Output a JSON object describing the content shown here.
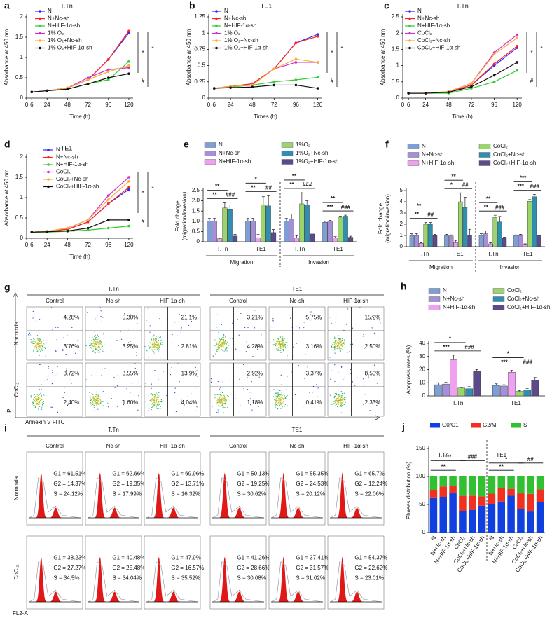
{
  "chart_data": [
    {
      "panel": "a",
      "type": "line",
      "title": "T.Tn",
      "x_label": "Time (h)",
      "y_label": "Absorbance at 450 nm",
      "x": [
        6,
        24,
        48,
        72,
        96,
        120
      ],
      "xlim": [
        0,
        125
      ],
      "xticks": [
        0,
        6,
        24,
        48,
        72,
        96,
        120
      ],
      "ylim": [
        0,
        2
      ],
      "yticks": [
        0,
        0.5,
        1,
        1.5,
        2
      ],
      "series": [
        {
          "name": "N",
          "color": "#2b2bff",
          "values": [
            0.15,
            0.18,
            0.25,
            0.45,
            0.95,
            1.6
          ]
        },
        {
          "name": "N+Nc-sh",
          "color": "#ff2020",
          "values": [
            0.15,
            0.18,
            0.25,
            0.45,
            0.95,
            1.65
          ]
        },
        {
          "name": "N+HIF-1α-sh",
          "color": "#33cc33",
          "values": [
            0.15,
            0.18,
            0.22,
            0.35,
            0.45,
            0.9
          ]
        },
        {
          "name": "1% O₂",
          "color": "#cc33cc",
          "values": [
            0.15,
            0.18,
            0.25,
            0.5,
            0.7,
            0.75
          ]
        },
        {
          "name": "1% O₂+Nc-sh",
          "color": "#ffaa33",
          "values": [
            0.15,
            0.18,
            0.25,
            0.45,
            0.65,
            0.8
          ]
        },
        {
          "name": "1% O₂+HIF-1α-sh",
          "color": "#111111",
          "values": [
            0.15,
            0.18,
            0.22,
            0.35,
            0.5,
            0.6
          ]
        }
      ],
      "annotations": [
        "*",
        "*",
        "#"
      ]
    },
    {
      "panel": "b",
      "type": "line",
      "title": "TE1",
      "x_label": "Times (h)",
      "y_label": "Absorbance at 450 nm",
      "x": [
        6,
        24,
        48,
        72,
        96,
        120
      ],
      "xlim": [
        0,
        125
      ],
      "xticks": [
        0,
        6,
        24,
        48,
        72,
        96,
        120
      ],
      "ylim": [
        0,
        1.25
      ],
      "yticks": [
        0,
        0.25,
        0.5,
        0.75,
        1,
        1.25
      ],
      "series": [
        {
          "name": "N",
          "color": "#2b2bff",
          "values": [
            0.15,
            0.18,
            0.22,
            0.45,
            0.85,
            0.98
          ]
        },
        {
          "name": "N+Nc-sh",
          "color": "#ff2020",
          "values": [
            0.15,
            0.18,
            0.22,
            0.45,
            0.85,
            0.95
          ]
        },
        {
          "name": "N+HIF-1α-sh",
          "color": "#33cc33",
          "values": [
            0.15,
            0.17,
            0.2,
            0.25,
            0.28,
            0.32
          ]
        },
        {
          "name": "1% O₂",
          "color": "#cc33cc",
          "values": [
            0.15,
            0.18,
            0.2,
            0.45,
            0.55,
            0.55
          ]
        },
        {
          "name": "1% O₂+Nc-sh",
          "color": "#ffaa33",
          "values": [
            0.15,
            0.18,
            0.2,
            0.45,
            0.6,
            0.55
          ]
        },
        {
          "name": "1% O₂+HIF-1α-sh",
          "color": "#111111",
          "values": [
            0.15,
            0.16,
            0.17,
            0.2,
            0.2,
            0.15
          ]
        }
      ],
      "annotations": [
        "*",
        "*",
        "#"
      ]
    },
    {
      "panel": "c",
      "type": "line",
      "title": "T.Tn",
      "x_label": "Time (h)",
      "y_label": "Absorbance at 450 nm",
      "x": [
        6,
        24,
        48,
        72,
        96,
        120
      ],
      "xlim": [
        0,
        125
      ],
      "xticks": [
        0,
        6,
        24,
        48,
        72,
        96,
        120
      ],
      "ylim": [
        0,
        2.5
      ],
      "yticks": [
        0,
        0.5,
        1,
        1.5,
        2,
        2.5
      ],
      "series": [
        {
          "name": "N",
          "color": "#2b2bff",
          "values": [
            0.15,
            0.15,
            0.18,
            0.4,
            1.0,
            1.55
          ]
        },
        {
          "name": "N+Nc-sh",
          "color": "#ff2020",
          "values": [
            0.15,
            0.15,
            0.18,
            0.4,
            1.05,
            1.6
          ]
        },
        {
          "name": "N+HIF-1α-sh",
          "color": "#33cc33",
          "values": [
            0.15,
            0.15,
            0.15,
            0.3,
            0.5,
            0.85
          ]
        },
        {
          "name": "CoCl₂",
          "color": "#cc33cc",
          "values": [
            0.15,
            0.15,
            0.2,
            0.45,
            1.4,
            1.95
          ]
        },
        {
          "name": "CoCl₂+Nc-sh",
          "color": "#ffaa33",
          "values": [
            0.15,
            0.15,
            0.2,
            0.45,
            1.35,
            1.85
          ]
        },
        {
          "name": "CoCl₂+HIF-1α-sh",
          "color": "#111111",
          "values": [
            0.15,
            0.15,
            0.18,
            0.35,
            0.7,
            1.1
          ]
        }
      ],
      "annotations": [
        "*",
        "*",
        "#"
      ]
    },
    {
      "panel": "d",
      "type": "line",
      "title": "TE1",
      "x_label": "Time (h)",
      "y_label": "Absorbance at 450 nm",
      "x": [
        6,
        24,
        48,
        72,
        96,
        120
      ],
      "xlim": [
        0,
        125
      ],
      "xticks": [
        0,
        6,
        24,
        48,
        72,
        96,
        120
      ],
      "ylim": [
        0,
        2
      ],
      "yticks": [
        0,
        0.5,
        1,
        1.5,
        2
      ],
      "series": [
        {
          "name": "N",
          "color": "#2b2bff",
          "values": [
            0.15,
            0.17,
            0.22,
            0.4,
            0.85,
            1.2
          ]
        },
        {
          "name": "N+Nc-sh",
          "color": "#ff2020",
          "values": [
            0.15,
            0.17,
            0.22,
            0.4,
            0.85,
            1.25
          ]
        },
        {
          "name": "N+HIF-1α-sh",
          "color": "#33cc33",
          "values": [
            0.15,
            0.15,
            0.17,
            0.2,
            0.25,
            0.3
          ]
        },
        {
          "name": "CoCl₂",
          "color": "#cc33cc",
          "values": [
            0.15,
            0.17,
            0.25,
            0.45,
            1.05,
            1.5
          ]
        },
        {
          "name": "CoCl₂+Nc-sh",
          "color": "#ffaa33",
          "values": [
            0.15,
            0.17,
            0.25,
            0.45,
            0.95,
            1.4
          ]
        },
        {
          "name": "CoCl₂+HIF-1α-sh",
          "color": "#111111",
          "values": [
            0.15,
            0.16,
            0.18,
            0.25,
            0.45,
            0.45
          ]
        }
      ],
      "annotations": [
        "*",
        "*",
        "#"
      ]
    },
    {
      "panel": "e",
      "type": "grouped_bar",
      "y_label": [
        "Fold change",
        "(migration/invasion)"
      ],
      "categories": [
        "T.Tn",
        "TE1",
        "T.Tn",
        "TE1"
      ],
      "sections": [
        "Migration",
        "Invasion"
      ],
      "ylim": [
        0,
        2.5
      ],
      "yticks": [
        0,
        0.5,
        {
          "value": 1,
          "label": "1.0"
        },
        1.5,
        {
          "value": 2,
          "label": "2.0"
        },
        2.5
      ],
      "series": [
        {
          "name": "N",
          "color": "#7e9fd6",
          "values": [
            1.0,
            1.0,
            1.0,
            0.95
          ],
          "errors": [
            0.15,
            0.15,
            0.15,
            0.05
          ]
        },
        {
          "name": "N+Nc-sh",
          "color": "#a58fd6",
          "values": [
            1.0,
            1.0,
            1.1,
            1.0
          ],
          "errors": [
            0.15,
            0.15,
            0.25,
            0.05
          ]
        },
        {
          "name": "N+HIF-1α-sh",
          "color": "#f0a0f0",
          "values": [
            0.15,
            0.2,
            0.2,
            0.2
          ],
          "errors": [
            0.03,
            0.15,
            0.1,
            0.05
          ]
        },
        {
          "name": "1%O₂",
          "color": "#9ad46a",
          "values": [
            1.65,
            1.8,
            1.85,
            1.2
          ],
          "errors": [
            0.25,
            0.4,
            0.55,
            0.05
          ]
        },
        {
          "name": "1%O₂+Nc-sh",
          "color": "#2e8fb0",
          "values": [
            1.6,
            1.75,
            1.8,
            1.25
          ],
          "errors": [
            0.2,
            0.5,
            0.2,
            0.05
          ]
        },
        {
          "name": "1%O₂+HIF-1α-sh",
          "color": "#5c4a8a",
          "values": [
            0.28,
            0.45,
            0.38,
            0.22
          ],
          "errors": [
            0.08,
            0.15,
            0.15,
            0.05
          ]
        }
      ],
      "annotations": [
        [
          "**",
          "**",
          "###"
        ],
        [
          "*",
          "**",
          "##"
        ],
        [
          "**",
          "**",
          "###"
        ],
        [
          "**",
          "***",
          "###"
        ]
      ]
    },
    {
      "panel": "f",
      "type": "grouped_bar",
      "y_label": [
        "Fold change",
        "(migration/invasion)"
      ],
      "categories": [
        "T.Tn",
        "TE1",
        "T.Tn",
        "TE1"
      ],
      "sections": [
        "Migration",
        "Invasion"
      ],
      "ylim": [
        0,
        5
      ],
      "yticks": [
        0,
        1,
        2,
        3,
        4,
        5
      ],
      "series": [
        {
          "name": "N",
          "color": "#7e9fd6",
          "values": [
            1.0,
            1.0,
            1.0,
            1.0
          ],
          "errors": [
            0.15,
            0.1,
            0.15,
            0.05
          ]
        },
        {
          "name": "N+Nc-sh",
          "color": "#a58fd6",
          "values": [
            1.0,
            0.95,
            1.15,
            1.0
          ],
          "errors": [
            0.15,
            0.1,
            0.25,
            0.1
          ]
        },
        {
          "name": "N+HIF-1α-sh",
          "color": "#f0a0f0",
          "values": [
            0.3,
            0.35,
            0.25,
            0.2
          ],
          "errors": [
            0.05,
            0.2,
            0.1,
            0.05
          ]
        },
        {
          "name": "CoCl₂",
          "color": "#9ad46a",
          "values": [
            2.0,
            4.0,
            2.6,
            4.05
          ],
          "errors": [
            0.15,
            0.8,
            0.2,
            0.15
          ]
        },
        {
          "name": "CoCl₂+Nc-sh",
          "color": "#2e8fb0",
          "values": [
            2.0,
            3.5,
            2.2,
            4.45
          ],
          "errors": [
            0.15,
            0.9,
            0.5,
            0.2
          ]
        },
        {
          "name": "CoCl₂+HIF-1α-sh",
          "color": "#5c4a8a",
          "values": [
            1.0,
            1.05,
            0.75,
            1.0
          ],
          "errors": [
            0.1,
            0.5,
            0.1,
            0.4
          ]
        }
      ],
      "annotations": [
        [
          "**",
          "**",
          "##"
        ],
        [
          "**",
          "*",
          "##"
        ],
        [
          "**",
          "**",
          "###"
        ],
        [
          "***",
          "***",
          "###"
        ]
      ]
    },
    {
      "panel": "h",
      "type": "grouped_bar",
      "y_label": "Apoptosis rates (%)",
      "categories": [
        "T.Tn",
        "TE1"
      ],
      "ylim": [
        0,
        40
      ],
      "yticks": [
        0,
        10,
        20,
        30,
        40
      ],
      "series": [
        {
          "name": "N",
          "color": "#7e9fd6",
          "values": [
            8.5,
            8
          ],
          "errors": [
            1.5,
            1.2
          ]
        },
        {
          "name": "N+Nc-sh",
          "color": "#a58fd6",
          "values": [
            9,
            7.5
          ],
          "errors": [
            1.5,
            1
          ]
        },
        {
          "name": "N+HIF-1α-sh",
          "color": "#f0a0f0",
          "values": [
            27.5,
            18
          ],
          "errors": [
            3.5,
            1.5
          ]
        },
        {
          "name": "CoCl₂",
          "color": "#9ad46a",
          "values": [
            6,
            3.5
          ],
          "errors": [
            0.5,
            0.5
          ]
        },
        {
          "name": "CoCl₂+Nc-sh",
          "color": "#2e8fb0",
          "values": [
            5.5,
            4.5
          ],
          "errors": [
            1.5,
            1
          ]
        },
        {
          "name": "CoCl₂+HIF-1α-sh",
          "color": "#5c4a8a",
          "values": [
            18.5,
            12
          ],
          "errors": [
            1.5,
            2
          ]
        }
      ],
      "annotations": [
        [
          "*",
          "***",
          "###"
        ],
        [
          "*",
          "***",
          "###"
        ]
      ]
    },
    {
      "panel": "j",
      "type": "stacked_bar",
      "y_label": "Phases distribution (%)",
      "categories": [
        "N",
        "N+Nc-sh",
        "N+HIF-1α-sh",
        "CoCl₂",
        "CoCl₂+Nc-sh",
        "CoCl₂+HIF-1α-sh",
        "N",
        "N+Nc-sh",
        "N+HIF-1α-sh",
        "CoCl₂",
        "CoCl₂+Nc-sh",
        "CoCl₂+HIF-1α-sh"
      ],
      "groups": [
        "T.Tn",
        "TE1"
      ],
      "ylim": [
        0,
        150
      ],
      "yticks": [
        0,
        50,
        100,
        150
      ],
      "series": [
        {
          "name": "G0/G1",
          "color": "#1040e0",
          "values": [
            61.51,
            62.66,
            69.96,
            38.23,
            40.48,
            47.9,
            50.13,
            55.35,
            65.7,
            41.26,
            37.41,
            54.37
          ]
        },
        {
          "name": "G2/M",
          "color": "#f03020",
          "values": [
            14.37,
            19.35,
            13.71,
            27.27,
            25.48,
            16.57,
            19.25,
            24.53,
            12.24,
            28.66,
            31.57,
            22.62
          ]
        },
        {
          "name": "S",
          "color": "#30c030",
          "values": [
            24.12,
            17.99,
            16.32,
            34.5,
            34.04,
            35.52,
            30.62,
            20.12,
            22.06,
            30.08,
            31.02,
            23.01
          ]
        }
      ],
      "annotations": [
        "***",
        "**",
        "###",
        "*",
        "**",
        "##"
      ]
    }
  ],
  "flow_cytometry": {
    "panel": "g",
    "rows": [
      "Normoxia",
      "CoCl₂"
    ],
    "y_label": "PI",
    "x_label": "Annexin V FITC",
    "groups": [
      {
        "title": "T.Tn",
        "columns": [
          "Control",
          "Nc-sh",
          "HIF-1α-sh"
        ],
        "plots": [
          [
            [
              "4.28%",
              "3.76%"
            ],
            [
              "5.30%",
              "3.25%"
            ],
            [
              "21.1%",
              "2.81%"
            ]
          ],
          [
            [
              "3.72%",
              "2.40%"
            ],
            [
              "3.55%",
              "1.60%"
            ],
            [
              "13.9%",
              "4.04%"
            ]
          ]
        ]
      },
      {
        "title": "TE1",
        "columns": [
          "Control",
          "Nc-sh",
          "HIF-1α-sh"
        ],
        "plots": [
          [
            [
              "3.21%",
              "4.28%"
            ],
            [
              "5.75%",
              "3.16%"
            ],
            [
              "15.2%",
              "2.50%"
            ]
          ],
          [
            [
              "2.92%",
              "1.18%"
            ],
            [
              "3.37%",
              "0.41%"
            ],
            [
              "8.50%",
              "2.33%"
            ]
          ]
        ]
      }
    ]
  },
  "cell_cycle": {
    "panel": "i",
    "rows": [
      "Normoxia",
      "CoCl₂"
    ],
    "x_label": "FL2-A",
    "groups": [
      {
        "title": "T.Tn",
        "columns": [
          "Control",
          "Nc-sh",
          "HIF-1α-sh"
        ],
        "plots": [
          [
            [
              "G1 = 61.51%",
              "G2 = 14.37%",
              "S = 24.12%"
            ],
            [
              "G1 = 62.66%",
              "G2 = 19.35%",
              "S = 17.99%"
            ],
            [
              "G1 = 69.96%",
              "G2 = 13.71%",
              "S = 16.32%"
            ]
          ],
          [
            [
              "G1 = 38.23%",
              "G2 = 27.27%",
              "S = 34.5%"
            ],
            [
              "G1 = 40.48%",
              "G2 = 25.48%",
              "S = 34.04%"
            ],
            [
              "G1 = 47.9%",
              "G2 = 16.57%",
              "S = 35.52%"
            ]
          ]
        ]
      },
      {
        "title": "TE1",
        "columns": [
          "Control",
          "Nc-sh",
          "HIF-1α-sh"
        ],
        "plots": [
          [
            [
              "G1 = 50.13%",
              "G2 = 19.25%",
              "S = 30.62%"
            ],
            [
              "G1 = 55.35%",
              "G2 = 24.53%",
              "S = 20.12%"
            ],
            [
              "G1 = 65.7%",
              "G2 = 12.24%",
              "S = 22.06%"
            ]
          ],
          [
            [
              "G1 = 41.26%",
              "G2 = 28.66%",
              "S = 30.08%"
            ],
            [
              "G1 = 37.41%",
              "G2 = 31.57%",
              "S = 31.02%"
            ],
            [
              "G1 = 54.37%",
              "G2 = 22.62%",
              "S = 23.01%"
            ]
          ]
        ]
      }
    ]
  }
}
